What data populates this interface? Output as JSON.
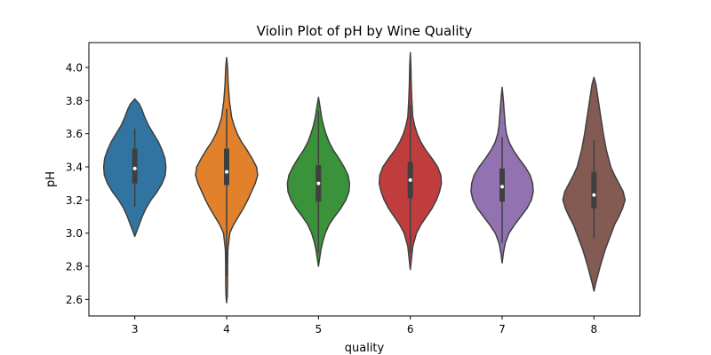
{
  "chart_data": {
    "type": "violin",
    "title": "Violin Plot of pH by Wine Quality",
    "xlabel": "quality",
    "ylabel": "pH",
    "ylim": [
      2.5,
      4.15
    ],
    "yticks": [
      "2.6",
      "2.8",
      "3.0",
      "3.2",
      "3.4",
      "3.6",
      "3.8",
      "4.0"
    ],
    "grid": false,
    "categories": [
      "3",
      "4",
      "5",
      "6",
      "7",
      "8"
    ],
    "series": [
      {
        "category": "3",
        "color": "#3274a1",
        "min": 2.98,
        "max": 3.81,
        "q1": 3.3,
        "median": 3.39,
        "q3": 3.51,
        "whisker_low": 3.16,
        "whisker_high": 3.63,
        "profile": [
          [
            2.98,
            0.0
          ],
          [
            3.0,
            0.04
          ],
          [
            3.05,
            0.14
          ],
          [
            3.1,
            0.24
          ],
          [
            3.15,
            0.36
          ],
          [
            3.2,
            0.52
          ],
          [
            3.25,
            0.72
          ],
          [
            3.3,
            0.88
          ],
          [
            3.35,
            0.98
          ],
          [
            3.4,
            1.0
          ],
          [
            3.45,
            0.97
          ],
          [
            3.5,
            0.88
          ],
          [
            3.55,
            0.76
          ],
          [
            3.6,
            0.6
          ],
          [
            3.65,
            0.44
          ],
          [
            3.7,
            0.32
          ],
          [
            3.75,
            0.22
          ],
          [
            3.78,
            0.14
          ],
          [
            3.81,
            0.0
          ]
        ]
      },
      {
        "category": "4",
        "color": "#e1812c",
        "min": 2.58,
        "max": 4.06,
        "q1": 3.29,
        "median": 3.37,
        "q3": 3.51,
        "whisker_low": 2.74,
        "whisker_high": 3.75,
        "profile": [
          [
            2.58,
            0.0
          ],
          [
            2.62,
            0.02
          ],
          [
            2.7,
            0.03
          ],
          [
            2.8,
            0.03
          ],
          [
            2.9,
            0.04
          ],
          [
            3.0,
            0.1
          ],
          [
            3.05,
            0.22
          ],
          [
            3.1,
            0.38
          ],
          [
            3.15,
            0.54
          ],
          [
            3.2,
            0.68
          ],
          [
            3.25,
            0.8
          ],
          [
            3.3,
            0.92
          ],
          [
            3.35,
            1.0
          ],
          [
            3.4,
            0.96
          ],
          [
            3.45,
            0.82
          ],
          [
            3.5,
            0.66
          ],
          [
            3.55,
            0.48
          ],
          [
            3.6,
            0.34
          ],
          [
            3.65,
            0.24
          ],
          [
            3.7,
            0.16
          ],
          [
            3.8,
            0.09
          ],
          [
            3.9,
            0.05
          ],
          [
            4.0,
            0.03
          ],
          [
            4.06,
            0.0
          ]
        ]
      },
      {
        "category": "5",
        "color": "#3a923a",
        "min": 2.8,
        "max": 3.82,
        "q1": 3.19,
        "median": 3.3,
        "q3": 3.41,
        "whisker_low": 2.88,
        "whisker_high": 3.74,
        "profile": [
          [
            2.8,
            0.0
          ],
          [
            2.85,
            0.04
          ],
          [
            2.9,
            0.08
          ],
          [
            2.95,
            0.14
          ],
          [
            3.0,
            0.22
          ],
          [
            3.05,
            0.34
          ],
          [
            3.1,
            0.52
          ],
          [
            3.15,
            0.72
          ],
          [
            3.2,
            0.88
          ],
          [
            3.25,
            0.98
          ],
          [
            3.3,
            1.0
          ],
          [
            3.35,
            0.95
          ],
          [
            3.4,
            0.82
          ],
          [
            3.45,
            0.66
          ],
          [
            3.5,
            0.48
          ],
          [
            3.55,
            0.34
          ],
          [
            3.6,
            0.24
          ],
          [
            3.65,
            0.16
          ],
          [
            3.7,
            0.1
          ],
          [
            3.75,
            0.06
          ],
          [
            3.82,
            0.0
          ]
        ]
      },
      {
        "category": "6",
        "color": "#c03d3e",
        "min": 2.78,
        "max": 4.09,
        "q1": 3.21,
        "median": 3.32,
        "q3": 3.43,
        "whisker_low": 2.88,
        "whisker_high": 3.77,
        "profile": [
          [
            2.78,
            0.0
          ],
          [
            2.85,
            0.04
          ],
          [
            2.92,
            0.08
          ],
          [
            3.0,
            0.2
          ],
          [
            3.05,
            0.34
          ],
          [
            3.1,
            0.52
          ],
          [
            3.15,
            0.7
          ],
          [
            3.2,
            0.84
          ],
          [
            3.25,
            0.94
          ],
          [
            3.3,
            1.0
          ],
          [
            3.35,
            0.98
          ],
          [
            3.4,
            0.88
          ],
          [
            3.45,
            0.7
          ],
          [
            3.5,
            0.5
          ],
          [
            3.55,
            0.34
          ],
          [
            3.6,
            0.22
          ],
          [
            3.65,
            0.14
          ],
          [
            3.7,
            0.08
          ],
          [
            3.8,
            0.05
          ],
          [
            3.9,
            0.03
          ],
          [
            4.0,
            0.02
          ],
          [
            4.09,
            0.0
          ]
        ]
      },
      {
        "category": "7",
        "color": "#9372b2",
        "min": 2.82,
        "max": 3.88,
        "q1": 3.19,
        "median": 3.28,
        "q3": 3.39,
        "whisker_low": 2.94,
        "whisker_high": 3.58,
        "profile": [
          [
            2.82,
            0.0
          ],
          [
            2.88,
            0.04
          ],
          [
            2.94,
            0.1
          ],
          [
            3.0,
            0.22
          ],
          [
            3.05,
            0.4
          ],
          [
            3.1,
            0.6
          ],
          [
            3.15,
            0.8
          ],
          [
            3.2,
            0.94
          ],
          [
            3.25,
            1.0
          ],
          [
            3.3,
            0.98
          ],
          [
            3.35,
            0.9
          ],
          [
            3.4,
            0.74
          ],
          [
            3.45,
            0.54
          ],
          [
            3.5,
            0.36
          ],
          [
            3.55,
            0.22
          ],
          [
            3.6,
            0.14
          ],
          [
            3.65,
            0.1
          ],
          [
            3.7,
            0.08
          ],
          [
            3.75,
            0.06
          ],
          [
            3.8,
            0.04
          ],
          [
            3.88,
            0.0
          ]
        ]
      },
      {
        "category": "8",
        "color": "#845b53",
        "min": 2.65,
        "max": 3.94,
        "q1": 3.15,
        "median": 3.23,
        "q3": 3.37,
        "whisker_low": 2.97,
        "whisker_high": 3.56,
        "profile": [
          [
            2.65,
            0.0
          ],
          [
            2.7,
            0.06
          ],
          [
            2.8,
            0.2
          ],
          [
            2.9,
            0.36
          ],
          [
            3.0,
            0.56
          ],
          [
            3.05,
            0.66
          ],
          [
            3.1,
            0.8
          ],
          [
            3.15,
            0.92
          ],
          [
            3.2,
            1.0
          ],
          [
            3.25,
            0.94
          ],
          [
            3.3,
            0.8
          ],
          [
            3.35,
            0.66
          ],
          [
            3.4,
            0.54
          ],
          [
            3.5,
            0.4
          ],
          [
            3.6,
            0.3
          ],
          [
            3.7,
            0.22
          ],
          [
            3.8,
            0.14
          ],
          [
            3.9,
            0.06
          ],
          [
            3.94,
            0.0
          ]
        ]
      }
    ]
  }
}
